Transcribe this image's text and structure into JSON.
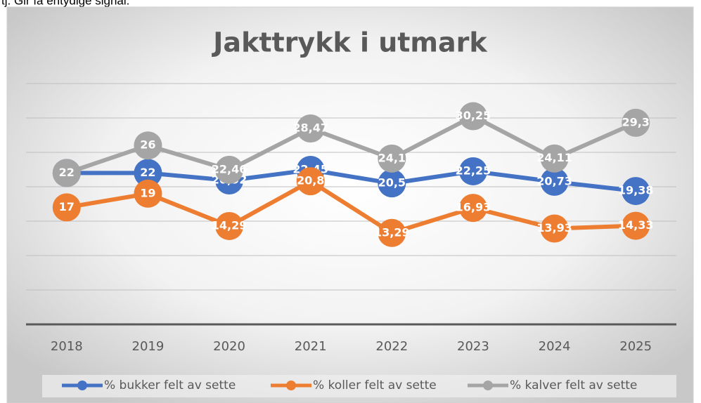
{
  "page_note_text": "tj. Gir få entydige signal.",
  "chart_data": {
    "type": "line",
    "title": "Jakttrykk i utmark",
    "categories": [
      "2018",
      "2019",
      "2020",
      "2021",
      "2022",
      "2023",
      "2024",
      "2025"
    ],
    "ylim": [
      0,
      35
    ],
    "yticks": [
      0,
      5,
      10,
      15,
      20,
      25,
      30,
      35
    ],
    "grid": true,
    "legend": "bottom",
    "series": [
      {
        "name": "% bukker felt av sette",
        "color": "#4472c4",
        "values": [
          22,
          22,
          20.92,
          22.45,
          20.5,
          22.25,
          20.73,
          19.38
        ],
        "value_labels": [
          "22",
          "22",
          "20,92",
          "22,45",
          "20,5",
          "22,25",
          "20,73",
          "19,38"
        ]
      },
      {
        "name": "% koller felt av sette",
        "color": "#ed7d31",
        "values": [
          17,
          19,
          14.29,
          20.8,
          13.29,
          16.93,
          13.93,
          14.33
        ],
        "value_labels": [
          "17",
          "19",
          "14,29",
          "20,8",
          "13,29",
          "16,93",
          "13,93",
          "14,33"
        ]
      },
      {
        "name": "% kalver felt av sette",
        "color": "#a5a5a5",
        "values": [
          22,
          26,
          22.46,
          28.47,
          24.1,
          30.25,
          24.11,
          29.3
        ],
        "value_labels": [
          "22",
          "26",
          "22,46",
          "28,47",
          "24,1",
          "30,25",
          "24,11",
          "29,3"
        ]
      }
    ]
  }
}
